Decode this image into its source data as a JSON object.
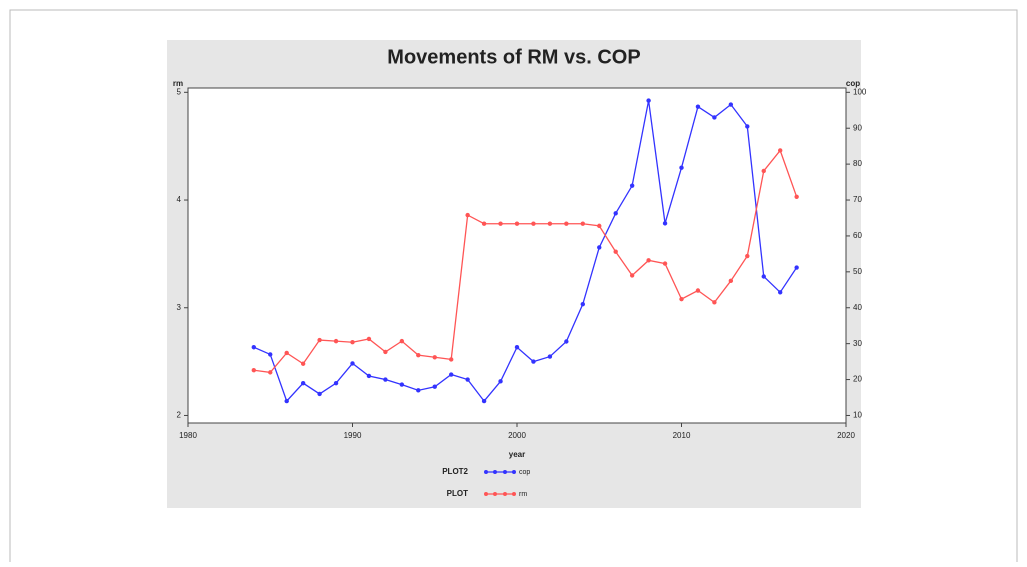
{
  "chart_data": {
    "type": "line",
    "title": "Movements of RM vs. COP",
    "xlabel": "year",
    "ylabel": "rm",
    "y2label": "cop",
    "x": [
      1984,
      1985,
      1986,
      1987,
      1988,
      1989,
      1990,
      1991,
      1992,
      1993,
      1994,
      1995,
      1996,
      1997,
      1998,
      1999,
      2000,
      2001,
      2002,
      2003,
      2004,
      2005,
      2006,
      2007,
      2008,
      2009,
      2010,
      2011,
      2012,
      2013,
      2014,
      2015,
      2016,
      2017
    ],
    "series": [
      {
        "name": "cop",
        "legend_title": "PLOT2",
        "color": "#3333ff",
        "axis": "y2",
        "values": [
          29,
          27,
          14,
          19,
          16,
          19,
          24.5,
          21,
          20,
          18.6,
          17,
          18,
          21.4,
          20,
          14,
          19.5,
          29,
          25,
          26.4,
          30.6,
          41,
          56.8,
          66.3,
          74,
          97.7,
          63.5,
          79,
          96,
          93,
          96.6,
          90.5,
          48.7,
          44.3,
          51.2
        ]
      },
      {
        "name": "rm",
        "legend_title": "PLOT",
        "color": "#ff5555",
        "axis": "y",
        "values": [
          2.42,
          2.4,
          2.58,
          2.48,
          2.7,
          2.69,
          2.68,
          2.71,
          2.59,
          2.69,
          2.56,
          2.54,
          2.52,
          3.86,
          3.78,
          3.78,
          3.78,
          3.78,
          3.78,
          3.78,
          3.78,
          3.76,
          3.52,
          3.3,
          3.44,
          3.41,
          3.08,
          3.16,
          3.05,
          3.25,
          3.48,
          4.27,
          4.46,
          4.03
        ]
      }
    ],
    "xlim": [
      1980,
      2020
    ],
    "xticks": [
      1980,
      1990,
      2000,
      2010,
      2020
    ],
    "ylim": [
      1.93,
      5.04
    ],
    "yticks": [
      2,
      3,
      4,
      5
    ],
    "y2lim": [
      7.9,
      101.2
    ],
    "y2ticks": [
      10,
      20,
      30,
      40,
      50,
      60,
      70,
      80,
      90,
      100
    ]
  }
}
